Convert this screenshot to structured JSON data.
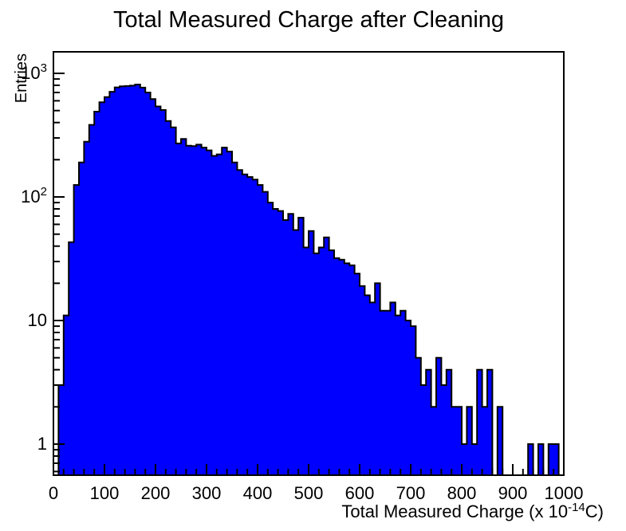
{
  "chart_data": {
    "type": "bar",
    "subtype": "step-histogram",
    "title": "Total Measured Charge after Cleaning",
    "ylabel": "Entries",
    "xlabel": "Total Measured Charge (x 10^-14 C)",
    "xlabel_parts": {
      "main": "Total Measured Charge (x 10",
      "sup": "-14",
      "tail": "C)"
    },
    "yscale": "log",
    "grid": false,
    "legend": null,
    "xlim": [
      0,
      1000
    ],
    "ylim": [
      0.56,
      1500
    ],
    "bin_width": 10,
    "x_major_tick_step": 100,
    "x_minor_tick_step": 20,
    "x_tick_labels": [
      "0",
      "100",
      "200",
      "300",
      "400",
      "500",
      "600",
      "700",
      "800",
      "900",
      "1000"
    ],
    "y_tick_labels": [
      {
        "text": "1",
        "value": 1
      },
      {
        "text": "10",
        "value": 10
      },
      {
        "base": "10",
        "exp": "2",
        "value": 100
      },
      {
        "base": "10",
        "exp": "3",
        "value": 1000
      }
    ],
    "fill_color": "#0000ff",
    "line_color": "#000000",
    "background_color": "#ffffff",
    "bins": [
      0,
      3,
      11,
      43,
      125,
      190,
      280,
      383,
      490,
      583,
      643,
      710,
      770,
      785,
      790,
      795,
      812,
      766,
      700,
      620,
      540,
      505,
      412,
      365,
      271,
      295,
      260,
      258,
      265,
      251,
      238,
      215,
      221,
      251,
      233,
      190,
      165,
      152,
      145,
      138,
      125,
      110,
      90,
      80,
      77,
      65,
      73,
      54,
      68,
      39,
      53,
      35,
      39,
      47,
      37,
      32,
      31,
      29,
      28,
      24,
      19,
      16,
      14,
      20,
      12,
      12,
      14,
      11,
      12,
      10,
      9,
      5,
      3,
      4,
      2,
      5,
      3,
      4,
      2,
      2,
      1,
      2,
      1,
      4,
      2,
      4,
      0,
      2,
      0,
      0,
      0,
      0,
      0,
      1,
      0,
      1,
      0,
      1,
      1,
      0
    ]
  }
}
